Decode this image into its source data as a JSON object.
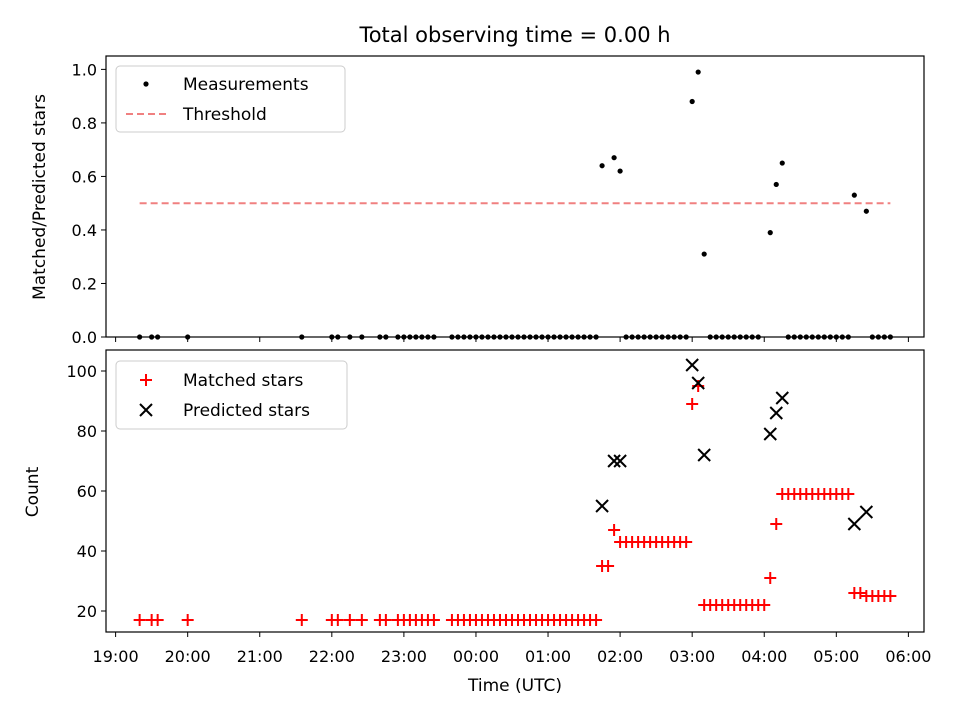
{
  "title": "Total observing time = 0.00 h",
  "xlabel": "Time (UTC)",
  "chart_data": [
    {
      "type": "scatter",
      "ylabel": "Matched/Predicted stars",
      "ylim": [
        0,
        1.05
      ],
      "yticks": [
        "0.0",
        "0.2",
        "0.4",
        "0.6",
        "0.8",
        "1.0"
      ],
      "legend_position": "top-left",
      "series": [
        {
          "name": "Measurements",
          "color": "#000000",
          "marker": "dot",
          "points": [
            [
              "19:20",
              0
            ],
            [
              "19:30",
              0
            ],
            [
              "19:35",
              0
            ],
            [
              "20:00",
              0
            ],
            [
              "21:35",
              0
            ],
            [
              "22:00",
              0
            ],
            [
              "22:05",
              0
            ],
            [
              "22:15",
              0
            ],
            [
              "22:25",
              0
            ],
            [
              "22:40",
              0
            ],
            [
              "22:45",
              0
            ],
            [
              "22:55",
              0
            ],
            [
              "23:00",
              0
            ],
            [
              "23:05",
              0
            ],
            [
              "23:10",
              0
            ],
            [
              "23:15",
              0
            ],
            [
              "23:20",
              0
            ],
            [
              "23:25",
              0
            ],
            [
              "23:40",
              0
            ],
            [
              "23:45",
              0
            ],
            [
              "23:50",
              0
            ],
            [
              "23:55",
              0
            ],
            [
              "00:00",
              0
            ],
            [
              "00:05",
              0
            ],
            [
              "00:10",
              0
            ],
            [
              "00:15",
              0
            ],
            [
              "00:20",
              0
            ],
            [
              "00:25",
              0
            ],
            [
              "00:30",
              0
            ],
            [
              "00:35",
              0
            ],
            [
              "00:40",
              0
            ],
            [
              "00:45",
              0
            ],
            [
              "00:50",
              0
            ],
            [
              "00:55",
              0
            ],
            [
              "01:00",
              0
            ],
            [
              "01:05",
              0
            ],
            [
              "01:10",
              0
            ],
            [
              "01:15",
              0
            ],
            [
              "01:20",
              0
            ],
            [
              "01:25",
              0
            ],
            [
              "01:30",
              0
            ],
            [
              "01:35",
              0
            ],
            [
              "01:40",
              0
            ],
            [
              "01:45",
              0.64
            ],
            [
              "01:55",
              0.67
            ],
            [
              "02:00",
              0.62
            ],
            [
              "02:05",
              0
            ],
            [
              "02:10",
              0
            ],
            [
              "02:15",
              0
            ],
            [
              "02:20",
              0
            ],
            [
              "02:25",
              0
            ],
            [
              "02:30",
              0
            ],
            [
              "02:35",
              0
            ],
            [
              "02:40",
              0
            ],
            [
              "02:45",
              0
            ],
            [
              "02:50",
              0
            ],
            [
              "02:55",
              0
            ],
            [
              "03:00",
              0.88
            ],
            [
              "03:05",
              0.99
            ],
            [
              "03:10",
              0.31
            ],
            [
              "03:15",
              0
            ],
            [
              "03:20",
              0
            ],
            [
              "03:25",
              0
            ],
            [
              "03:30",
              0
            ],
            [
              "03:35",
              0
            ],
            [
              "03:40",
              0
            ],
            [
              "03:45",
              0
            ],
            [
              "03:50",
              0
            ],
            [
              "03:55",
              0
            ],
            [
              "04:05",
              0.39
            ],
            [
              "04:10",
              0.57
            ],
            [
              "04:15",
              0.65
            ],
            [
              "04:20",
              0
            ],
            [
              "04:25",
              0
            ],
            [
              "04:30",
              0
            ],
            [
              "04:35",
              0
            ],
            [
              "04:40",
              0
            ],
            [
              "04:45",
              0
            ],
            [
              "04:50",
              0
            ],
            [
              "04:55",
              0
            ],
            [
              "05:00",
              0
            ],
            [
              "05:05",
              0
            ],
            [
              "05:10",
              0
            ],
            [
              "05:15",
              0.53
            ],
            [
              "05:25",
              0.47
            ],
            [
              "05:30",
              0
            ],
            [
              "05:35",
              0
            ],
            [
              "05:40",
              0
            ],
            [
              "05:45",
              0
            ]
          ]
        },
        {
          "name": "Threshold",
          "color": "#f08080",
          "style": "dashed",
          "points": [
            [
              "19:20",
              0.5
            ],
            [
              "05:45",
              0.5
            ]
          ]
        }
      ]
    },
    {
      "type": "scatter",
      "ylabel": "Count",
      "ylim": [
        13,
        107
      ],
      "yticks": [
        "20",
        "40",
        "60",
        "80",
        "100"
      ],
      "legend_position": "top-left",
      "series": [
        {
          "name": "Matched stars",
          "color": "#ff0000",
          "marker": "plus",
          "points": [
            [
              "19:20",
              17
            ],
            [
              "19:30",
              17
            ],
            [
              "19:35",
              17
            ],
            [
              "20:00",
              17
            ],
            [
              "21:35",
              17
            ],
            [
              "22:00",
              17
            ],
            [
              "22:05",
              17
            ],
            [
              "22:15",
              17
            ],
            [
              "22:25",
              17
            ],
            [
              "22:40",
              17
            ],
            [
              "22:45",
              17
            ],
            [
              "22:55",
              17
            ],
            [
              "23:00",
              17
            ],
            [
              "23:05",
              17
            ],
            [
              "23:10",
              17
            ],
            [
              "23:15",
              17
            ],
            [
              "23:20",
              17
            ],
            [
              "23:25",
              17
            ],
            [
              "23:40",
              17
            ],
            [
              "23:45",
              17
            ],
            [
              "23:50",
              17
            ],
            [
              "23:55",
              17
            ],
            [
              "00:00",
              17
            ],
            [
              "00:05",
              17
            ],
            [
              "00:10",
              17
            ],
            [
              "00:15",
              17
            ],
            [
              "00:20",
              17
            ],
            [
              "00:25",
              17
            ],
            [
              "00:30",
              17
            ],
            [
              "00:35",
              17
            ],
            [
              "00:40",
              17
            ],
            [
              "00:45",
              17
            ],
            [
              "00:50",
              17
            ],
            [
              "00:55",
              17
            ],
            [
              "01:00",
              17
            ],
            [
              "01:05",
              17
            ],
            [
              "01:10",
              17
            ],
            [
              "01:15",
              17
            ],
            [
              "01:20",
              17
            ],
            [
              "01:25",
              17
            ],
            [
              "01:30",
              17
            ],
            [
              "01:35",
              17
            ],
            [
              "01:40",
              17
            ],
            [
              "01:45",
              35
            ],
            [
              "01:50",
              35
            ],
            [
              "01:55",
              47
            ],
            [
              "02:00",
              43
            ],
            [
              "02:05",
              43
            ],
            [
              "02:10",
              43
            ],
            [
              "02:15",
              43
            ],
            [
              "02:20",
              43
            ],
            [
              "02:25",
              43
            ],
            [
              "02:30",
              43
            ],
            [
              "02:35",
              43
            ],
            [
              "02:40",
              43
            ],
            [
              "02:45",
              43
            ],
            [
              "02:50",
              43
            ],
            [
              "02:55",
              43
            ],
            [
              "03:00",
              89
            ],
            [
              "03:05",
              95
            ],
            [
              "03:10",
              22
            ],
            [
              "03:15",
              22
            ],
            [
              "03:20",
              22
            ],
            [
              "03:25",
              22
            ],
            [
              "03:30",
              22
            ],
            [
              "03:35",
              22
            ],
            [
              "03:40",
              22
            ],
            [
              "03:45",
              22
            ],
            [
              "03:50",
              22
            ],
            [
              "03:55",
              22
            ],
            [
              "04:00",
              22
            ],
            [
              "04:05",
              31
            ],
            [
              "04:10",
              49
            ],
            [
              "04:15",
              59
            ],
            [
              "04:20",
              59
            ],
            [
              "04:25",
              59
            ],
            [
              "04:30",
              59
            ],
            [
              "04:35",
              59
            ],
            [
              "04:40",
              59
            ],
            [
              "04:45",
              59
            ],
            [
              "04:50",
              59
            ],
            [
              "04:55",
              59
            ],
            [
              "05:00",
              59
            ],
            [
              "05:05",
              59
            ],
            [
              "05:10",
              59
            ],
            [
              "05:15",
              26
            ],
            [
              "05:20",
              26
            ],
            [
              "05:25",
              25
            ],
            [
              "05:30",
              25
            ],
            [
              "05:35",
              25
            ],
            [
              "05:40",
              25
            ],
            [
              "05:45",
              25
            ]
          ]
        },
        {
          "name": "Predicted stars",
          "color": "#000000",
          "marker": "x",
          "points": [
            [
              "01:45",
              55
            ],
            [
              "01:55",
              70
            ],
            [
              "02:00",
              70
            ],
            [
              "03:00",
              102
            ],
            [
              "03:05",
              96
            ],
            [
              "03:10",
              72
            ],
            [
              "04:05",
              79
            ],
            [
              "04:10",
              86
            ],
            [
              "04:15",
              91
            ],
            [
              "05:15",
              49
            ],
            [
              "05:25",
              53
            ]
          ]
        }
      ]
    }
  ],
  "x_axis": {
    "range": [
      "19:00",
      "06:00"
    ],
    "ticks": [
      "19:00",
      "20:00",
      "21:00",
      "22:00",
      "23:00",
      "00:00",
      "01:00",
      "02:00",
      "03:00",
      "04:00",
      "05:00",
      "06:00"
    ]
  }
}
